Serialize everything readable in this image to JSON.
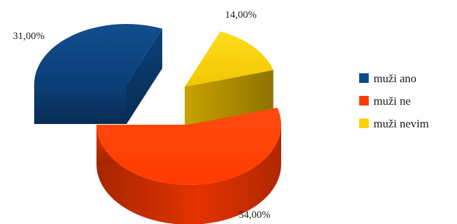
{
  "chart_data": {
    "type": "pie",
    "title": "",
    "series": [
      {
        "name": "muži ano",
        "value": 31,
        "label": "31,00%",
        "color": "#0b4a8b"
      },
      {
        "name": "muži ne",
        "value": 54,
        "label": "54,00%",
        "color": "#ff3a00"
      },
      {
        "name": "muži nevim",
        "value": 14,
        "label": "14,00%",
        "color": "#ffd300"
      }
    ],
    "legend_position": "right",
    "style": "3d-exploded"
  }
}
